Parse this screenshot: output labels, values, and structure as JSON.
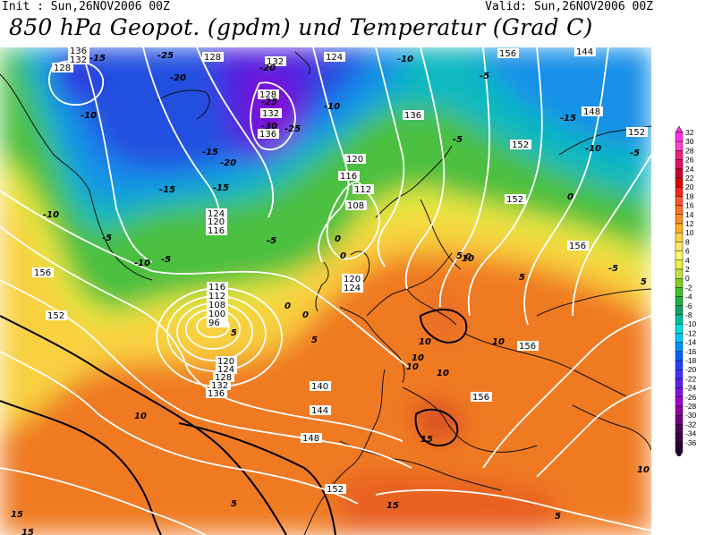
{
  "header": {
    "init": "Init : Sun,26NOV2006 00Z",
    "valid": "Valid: Sun,26NOV2006 00Z",
    "title": "850 hPa Geopot. (gpdm) und Temperatur (Grad C)"
  },
  "legend": {
    "labels": [
      "32",
      "30",
      "28",
      "26",
      "24",
      "22",
      "20",
      "18",
      "16",
      "14",
      "12",
      "10",
      "8",
      "6",
      "4",
      "2",
      "0",
      "-2",
      "-4",
      "-6",
      "-8",
      "-10",
      "-12",
      "-14",
      "-16",
      "-18",
      "-20",
      "-22",
      "-24",
      "-26",
      "-28",
      "-30",
      "-32",
      "-34",
      "-36"
    ],
    "colors": [
      "#ff2fe8",
      "#ff40c8",
      "#f02080",
      "#e01060",
      "#c80030",
      "#e00000",
      "#ff2020",
      "#ff5030",
      "#ff7020",
      "#ff9020",
      "#ffb020",
      "#ffd040",
      "#ffe860",
      "#fff860",
      "#e8f040",
      "#c0e040",
      "#80d020",
      "#40c030",
      "#20b040",
      "#10a060",
      "#00c0a0",
      "#00e0e0",
      "#00c8ff",
      "#0090ff",
      "#0060ff",
      "#2040ff",
      "#4030ff",
      "#6020f0",
      "#8010e0",
      "#a000d0",
      "#9000a0",
      "#700080",
      "#500060",
      "#3a0048",
      "#280030"
    ]
  },
  "geopotential_labels": [
    "136",
    "132",
    "128",
    "128",
    "128",
    "132",
    "132",
    "136",
    "124",
    "120",
    "116",
    "112",
    "108",
    "124",
    "120",
    "116",
    "136",
    "156",
    "144",
    "148",
    "152",
    "152",
    "156",
    "152",
    "156",
    "120",
    "124",
    "116",
    "112",
    "108",
    "100",
    "96",
    "120",
    "124",
    "128",
    "132",
    "136",
    "140",
    "144",
    "148",
    "152",
    "152",
    "156",
    "156"
  ],
  "temperature_labels": [
    "-15",
    "-25",
    "-20",
    "-25",
    "-20",
    "-15",
    "-30",
    "-10",
    "-15",
    "-20",
    "-25",
    "-15",
    "-5",
    "-10",
    "-10",
    "-5",
    "-10",
    "-15",
    "-5",
    "-5",
    "-10",
    "-5",
    "0",
    "0",
    "5",
    "0",
    "-5",
    "5",
    "10",
    "10",
    "15",
    "10",
    "15",
    "5",
    "10",
    "5",
    "0",
    "5",
    "10",
    "15",
    "-10",
    "-5",
    "0",
    "0",
    "5",
    "5",
    "10",
    "10",
    "15",
    "10"
  ]
}
